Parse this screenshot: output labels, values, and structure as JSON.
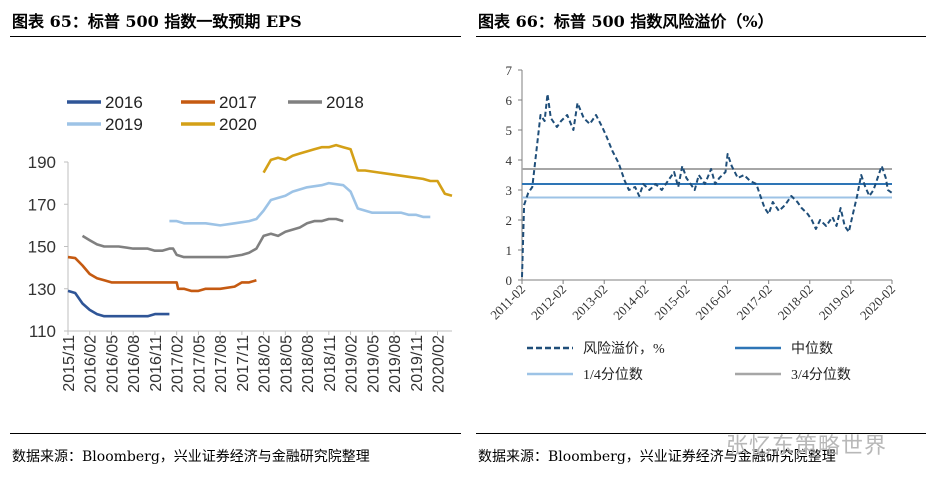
{
  "titles": {
    "left": "图表 65：标普 500 指数一致预期 EPS",
    "right": "图表 66：标普 500 指数风险溢价（%）"
  },
  "sources": {
    "left": "数据来源：Bloomberg，兴业证券经济与金融研究院整理",
    "right": "数据来源：Bloomberg，兴业证券经济与金融研究院整理"
  },
  "watermark": "张忆东策略世界",
  "chart_data": [
    {
      "type": "line",
      "title": "标普 500 指数一致预期 EPS",
      "xlabel": "",
      "ylabel": "",
      "ylim": [
        110,
        190
      ],
      "yticks": [
        110,
        130,
        150,
        170,
        190
      ],
      "xlim": [
        0,
        53
      ],
      "xticks": [
        {
          "pos": 0,
          "label": "2015/11"
        },
        {
          "pos": 3,
          "label": "2016/02"
        },
        {
          "pos": 6,
          "label": "2016/05"
        },
        {
          "pos": 9,
          "label": "2016/08"
        },
        {
          "pos": 12,
          "label": "2016/11"
        },
        {
          "pos": 15,
          "label": "2017/02"
        },
        {
          "pos": 18,
          "label": "2017/05"
        },
        {
          "pos": 21,
          "label": "2017/08"
        },
        {
          "pos": 24,
          "label": "2017/11"
        },
        {
          "pos": 27,
          "label": "2018/02"
        },
        {
          "pos": 30,
          "label": "2018/05"
        },
        {
          "pos": 33,
          "label": "2018/08"
        },
        {
          "pos": 36,
          "label": "2018/11"
        },
        {
          "pos": 39,
          "label": "2019/02"
        },
        {
          "pos": 42,
          "label": "2019/05"
        },
        {
          "pos": 45,
          "label": "2019/08"
        },
        {
          "pos": 48,
          "label": "2019/11"
        },
        {
          "pos": 51,
          "label": "2020/02"
        }
      ],
      "legend": "top, 3 columns",
      "series": [
        {
          "name": "2016",
          "color": "#2f5597",
          "points": [
            [
              0,
              129
            ],
            [
              1,
              128
            ],
            [
              2,
              123
            ],
            [
              3,
              120
            ],
            [
              4,
              118
            ],
            [
              5,
              117
            ],
            [
              6,
              117
            ],
            [
              8,
              117
            ],
            [
              10,
              117
            ],
            [
              11,
              117
            ],
            [
              12,
              118
            ],
            [
              13,
              118
            ],
            [
              14,
              118
            ]
          ]
        },
        {
          "name": "2017",
          "color": "#c55a11",
          "points": [
            [
              0,
              145
            ],
            [
              1,
              144.5
            ],
            [
              2,
              141
            ],
            [
              3,
              137
            ],
            [
              4,
              135
            ],
            [
              5,
              134
            ],
            [
              6,
              133
            ],
            [
              8,
              133
            ],
            [
              10,
              133
            ],
            [
              12,
              133
            ],
            [
              14,
              133
            ],
            [
              15,
              133
            ],
            [
              15.2,
              130
            ],
            [
              16,
              130
            ],
            [
              17,
              129
            ],
            [
              18,
              129
            ],
            [
              19,
              130
            ],
            [
              21,
              130
            ],
            [
              23,
              131
            ],
            [
              24,
              133
            ],
            [
              25,
              133
            ],
            [
              26,
              134
            ]
          ]
        },
        {
          "name": "2018",
          "color": "#808080",
          "points": [
            [
              2,
              155
            ],
            [
              3,
              153
            ],
            [
              4,
              151
            ],
            [
              5,
              150
            ],
            [
              7,
              150
            ],
            [
              9,
              149
            ],
            [
              11,
              149
            ],
            [
              12,
              148
            ],
            [
              13,
              148
            ],
            [
              14,
              149
            ],
            [
              14.5,
              149
            ],
            [
              15,
              146
            ],
            [
              16,
              145
            ],
            [
              18,
              145
            ],
            [
              20,
              145
            ],
            [
              22,
              145
            ],
            [
              24,
              146
            ],
            [
              25,
              147
            ],
            [
              26,
              149
            ],
            [
              27,
              155
            ],
            [
              28,
              156
            ],
            [
              29,
              155
            ],
            [
              30,
              157
            ],
            [
              31,
              158
            ],
            [
              32,
              159
            ],
            [
              33,
              161
            ],
            [
              34,
              162
            ],
            [
              35,
              162
            ],
            [
              36,
              163
            ],
            [
              37,
              163
            ],
            [
              38,
              162
            ]
          ]
        },
        {
          "name": "2019",
          "color": "#9dc3e6",
          "points": [
            [
              14,
              162
            ],
            [
              15,
              162
            ],
            [
              16,
              161
            ],
            [
              17,
              161
            ],
            [
              19,
              161
            ],
            [
              21,
              160
            ],
            [
              23,
              161
            ],
            [
              25,
              162
            ],
            [
              26,
              163
            ],
            [
              27,
              167
            ],
            [
              28,
              172
            ],
            [
              29,
              173
            ],
            [
              30,
              174
            ],
            [
              31,
              176
            ],
            [
              33,
              178
            ],
            [
              35,
              179
            ],
            [
              36,
              180
            ],
            [
              38,
              179
            ],
            [
              39,
              176
            ],
            [
              40,
              168
            ],
            [
              41,
              167
            ],
            [
              42,
              166
            ],
            [
              44,
              166
            ],
            [
              46,
              166
            ],
            [
              47,
              165
            ],
            [
              48,
              165
            ],
            [
              49,
              164
            ],
            [
              50,
              164
            ]
          ]
        },
        {
          "name": "2020",
          "color": "#d4a017",
          "points": [
            [
              27,
              185
            ],
            [
              28,
              191
            ],
            [
              29,
              192
            ],
            [
              30,
              191
            ],
            [
              31,
              193
            ],
            [
              32,
              194
            ],
            [
              33,
              195
            ],
            [
              34,
              196
            ],
            [
              35,
              197
            ],
            [
              36,
              197
            ],
            [
              37,
              198
            ],
            [
              38,
              197
            ],
            [
              39,
              196
            ],
            [
              40,
              186
            ],
            [
              41,
              186
            ],
            [
              43,
              185
            ],
            [
              45,
              184
            ],
            [
              47,
              183
            ],
            [
              49,
              182
            ],
            [
              50,
              181
            ],
            [
              51,
              181
            ],
            [
              52,
              175
            ],
            [
              53,
              174
            ]
          ]
        }
      ]
    },
    {
      "type": "line",
      "title": "标普 500 指数风险溢价（%）",
      "xlabel": "",
      "ylabel": "",
      "ylim": [
        0,
        7
      ],
      "yticks": [
        0,
        1,
        2,
        3,
        4,
        5,
        6,
        7
      ],
      "xlim": [
        0,
        9
      ],
      "xticks": [
        {
          "pos": 0,
          "label": "2011-02"
        },
        {
          "pos": 1,
          "label": "2012-02"
        },
        {
          "pos": 2,
          "label": "2013-02"
        },
        {
          "pos": 3,
          "label": "2014-02"
        },
        {
          "pos": 4,
          "label": "2015-02"
        },
        {
          "pos": 5,
          "label": "2016-02"
        },
        {
          "pos": 6,
          "label": "2017-02"
        },
        {
          "pos": 7,
          "label": "2018-02"
        },
        {
          "pos": 8,
          "label": "2019-02"
        },
        {
          "pos": 9,
          "label": "2020-02"
        }
      ],
      "legend": "bottom, 2 columns",
      "series": [
        {
          "name": "风险溢价，%",
          "color": "#1f4e79",
          "style": "dashed",
          "points": [
            [
              0,
              0.1
            ],
            [
              0.05,
              2.5
            ],
            [
              0.15,
              2.9
            ],
            [
              0.25,
              3.1
            ],
            [
              0.35,
              4.3
            ],
            [
              0.45,
              5.5
            ],
            [
              0.55,
              5.3
            ],
            [
              0.62,
              6.2
            ],
            [
              0.7,
              5.4
            ],
            [
              0.85,
              5.1
            ],
            [
              0.95,
              5.3
            ],
            [
              1.1,
              5.5
            ],
            [
              1.25,
              5.0
            ],
            [
              1.35,
              5.9
            ],
            [
              1.5,
              5.4
            ],
            [
              1.65,
              5.2
            ],
            [
              1.8,
              5.5
            ],
            [
              1.95,
              5.1
            ],
            [
              2.05,
              4.8
            ],
            [
              2.2,
              4.3
            ],
            [
              2.35,
              3.9
            ],
            [
              2.5,
              3.3
            ],
            [
              2.6,
              3.0
            ],
            [
              2.75,
              3.1
            ],
            [
              2.85,
              2.8
            ],
            [
              2.95,
              3.2
            ],
            [
              3.1,
              3.0
            ],
            [
              3.25,
              3.2
            ],
            [
              3.4,
              3.0
            ],
            [
              3.55,
              3.3
            ],
            [
              3.7,
              3.6
            ],
            [
              3.8,
              3.1
            ],
            [
              3.9,
              3.8
            ],
            [
              4.0,
              3.4
            ],
            [
              4.1,
              3.2
            ],
            [
              4.2,
              3.0
            ],
            [
              4.3,
              3.5
            ],
            [
              4.45,
              3.2
            ],
            [
              4.6,
              3.7
            ],
            [
              4.7,
              3.2
            ],
            [
              4.8,
              3.4
            ],
            [
              4.95,
              3.6
            ],
            [
              5.0,
              4.2
            ],
            [
              5.1,
              3.8
            ],
            [
              5.25,
              3.4
            ],
            [
              5.4,
              3.5
            ],
            [
              5.55,
              3.3
            ],
            [
              5.7,
              3.2
            ],
            [
              5.8,
              2.8
            ],
            [
              5.9,
              2.4
            ],
            [
              6.0,
              2.2
            ],
            [
              6.1,
              2.6
            ],
            [
              6.25,
              2.3
            ],
            [
              6.4,
              2.5
            ],
            [
              6.55,
              2.8
            ],
            [
              6.7,
              2.6
            ],
            [
              6.8,
              2.4
            ],
            [
              6.95,
              2.2
            ],
            [
              7.05,
              2.0
            ],
            [
              7.15,
              1.7
            ],
            [
              7.25,
              2.0
            ],
            [
              7.4,
              1.8
            ],
            [
              7.55,
              2.1
            ],
            [
              7.65,
              1.8
            ],
            [
              7.75,
              2.4
            ],
            [
              7.85,
              1.8
            ],
            [
              7.95,
              1.6
            ],
            [
              8.05,
              2.2
            ],
            [
              8.15,
              2.8
            ],
            [
              8.25,
              3.5
            ],
            [
              8.35,
              3.1
            ],
            [
              8.45,
              2.8
            ],
            [
              8.55,
              3.0
            ],
            [
              8.65,
              3.4
            ],
            [
              8.75,
              3.8
            ],
            [
              8.85,
              3.4
            ],
            [
              8.9,
              3.0
            ],
            [
              9.0,
              2.9
            ]
          ]
        },
        {
          "name": "中位数",
          "color": "#2e75b6",
          "value": 3.2
        },
        {
          "name": "1/4分位数",
          "color": "#9dc3e6",
          "value": 2.75
        },
        {
          "name": "3/4分位数",
          "color": "#a6a6a6",
          "value": 3.7
        }
      ]
    }
  ]
}
